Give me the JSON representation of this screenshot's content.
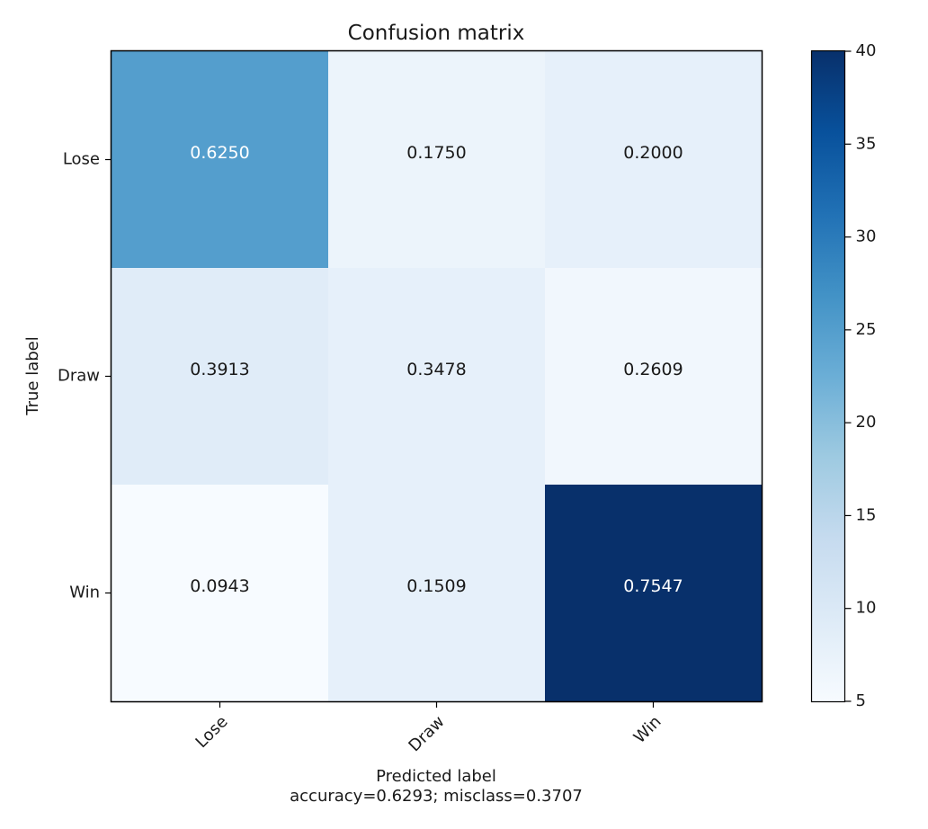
{
  "chart_data": {
    "type": "heatmap",
    "title": "Confusion matrix",
    "xlabel": "Predicted label",
    "ylabel": "True label",
    "subtitle": "accuracy=0.6293; misclass=0.3707",
    "row_labels": [
      "Lose",
      "Draw",
      "Win"
    ],
    "col_labels": [
      "Lose",
      "Draw",
      "Win"
    ],
    "cell_labels": [
      [
        "0.6250",
        "0.1750",
        "0.2000"
      ],
      [
        "0.3913",
        "0.3478",
        "0.2609"
      ],
      [
        "0.0943",
        "0.1509",
        "0.7547"
      ]
    ],
    "counts": [
      [
        25,
        7,
        8
      ],
      [
        9,
        8,
        6
      ],
      [
        5,
        8,
        40
      ]
    ],
    "colorbar": {
      "range": [
        5,
        40
      ],
      "ticks": [
        "5",
        "10",
        "15",
        "20",
        "25",
        "30",
        "35",
        "40"
      ],
      "colormap": "Blues"
    }
  }
}
